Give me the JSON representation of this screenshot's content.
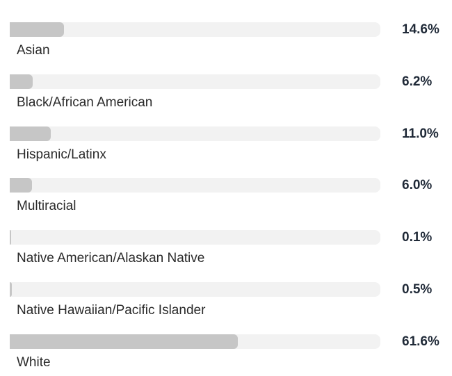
{
  "chart_data": {
    "type": "bar",
    "orientation": "horizontal",
    "categories": [
      "Asian",
      "Black/African American",
      "Hispanic/Latinx",
      "Multiracial",
      "Native American/Alaskan Native",
      "Native Hawaiian/Pacific Islander",
      "White"
    ],
    "values": [
      14.6,
      6.2,
      11.0,
      6.0,
      0.1,
      0.5,
      61.6
    ],
    "value_labels": [
      "14.6%",
      "6.2%",
      "11.0%",
      "6.0%",
      "0.1%",
      "0.5%",
      "61.6%"
    ],
    "title": "",
    "xlabel": "",
    "ylabel": "",
    "xlim": [
      0,
      100
    ],
    "unit": "%",
    "grid": false,
    "legend": "none",
    "colors": {
      "track": "#f2f2f2",
      "bar": "#c6c6c6",
      "value_text": "#1f2937",
      "label_text": "#2a2a2a"
    }
  }
}
